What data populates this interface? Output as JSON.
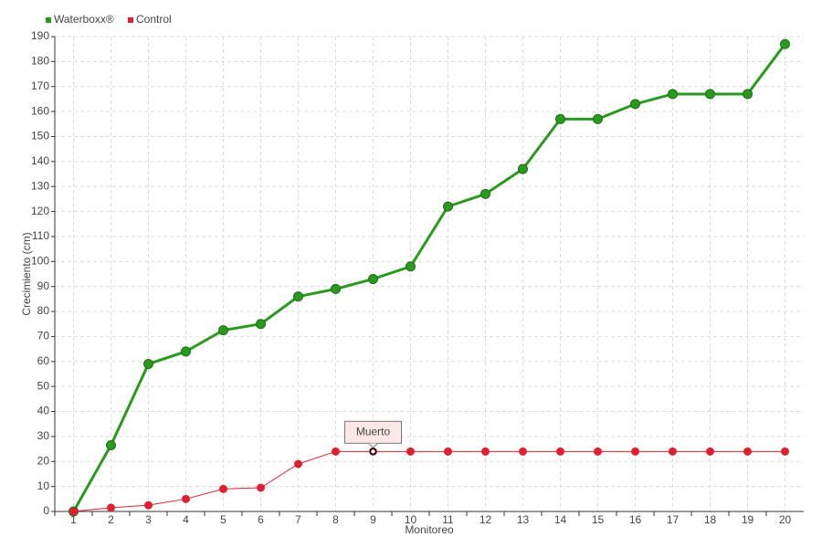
{
  "chart_data": {
    "type": "line",
    "x_label": "Monitoreo",
    "y_label": "Crecimiento (cm)",
    "categories": [
      "1",
      "2",
      "3",
      "4",
      "5",
      "6",
      "7",
      "8",
      "9",
      "10",
      "11",
      "12",
      "13",
      "14",
      "15",
      "16",
      "17",
      "18",
      "19",
      "20"
    ],
    "series": [
      {
        "name": "Waterboxx®",
        "color": "#2a9a1f",
        "values": [
          0,
          26.5,
          59,
          64,
          72.5,
          75,
          86,
          89,
          93,
          98,
          122,
          127,
          137,
          157,
          157,
          163,
          167,
          167,
          167,
          187
        ]
      },
      {
        "name": "Control",
        "color": "#e0202e",
        "values": [
          0,
          1.5,
          2.5,
          5,
          9,
          9.5,
          19,
          24,
          24,
          24,
          24,
          24,
          24,
          24,
          24,
          24,
          24,
          24,
          24,
          24
        ]
      }
    ],
    "annotations": [
      {
        "text": "Muerto",
        "series": "Control",
        "category": "9"
      }
    ],
    "ylim": [
      0,
      190
    ],
    "yticks": [
      0,
      10,
      20,
      30,
      40,
      50,
      60,
      70,
      80,
      90,
      100,
      110,
      120,
      130,
      140,
      150,
      160,
      170,
      180,
      190
    ],
    "grid": true,
    "legend": "top-left"
  }
}
